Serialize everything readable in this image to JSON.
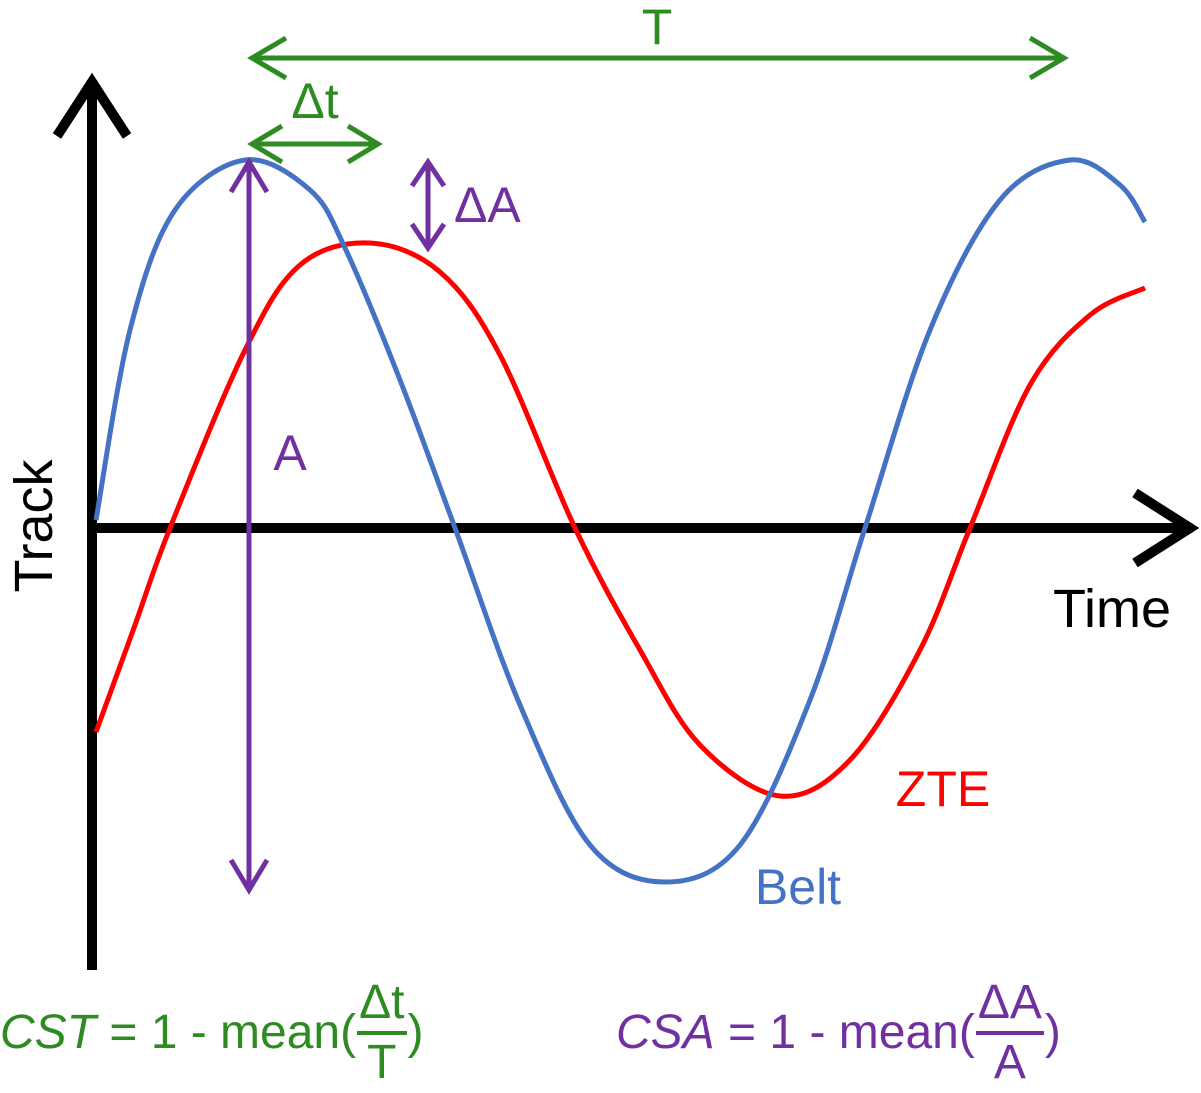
{
  "colors": {
    "axis": "#000000",
    "belt": "#4472C4",
    "zte": "#FF0000",
    "timing": "#2E8B22",
    "amplitude": "#7030A0"
  },
  "axes": {
    "y_label": "Track",
    "x_label": "Time"
  },
  "curves": {
    "belt_label": "Belt",
    "zte_label": "ZTE"
  },
  "annotations": {
    "period_label": "T",
    "time_shift_label": "Δt",
    "amplitude_diff_label": "ΔA",
    "amplitude_label": "A"
  },
  "formulas": {
    "cst": {
      "name": "CST",
      "expr": " = 1 - mean(",
      "numerator": "Δt",
      "denominator": "T",
      "close": ")"
    },
    "csa": {
      "name": "CSA",
      "expr": " = 1 - mean(",
      "numerator": "ΔA",
      "denominator": "A",
      "close": ")"
    }
  }
}
